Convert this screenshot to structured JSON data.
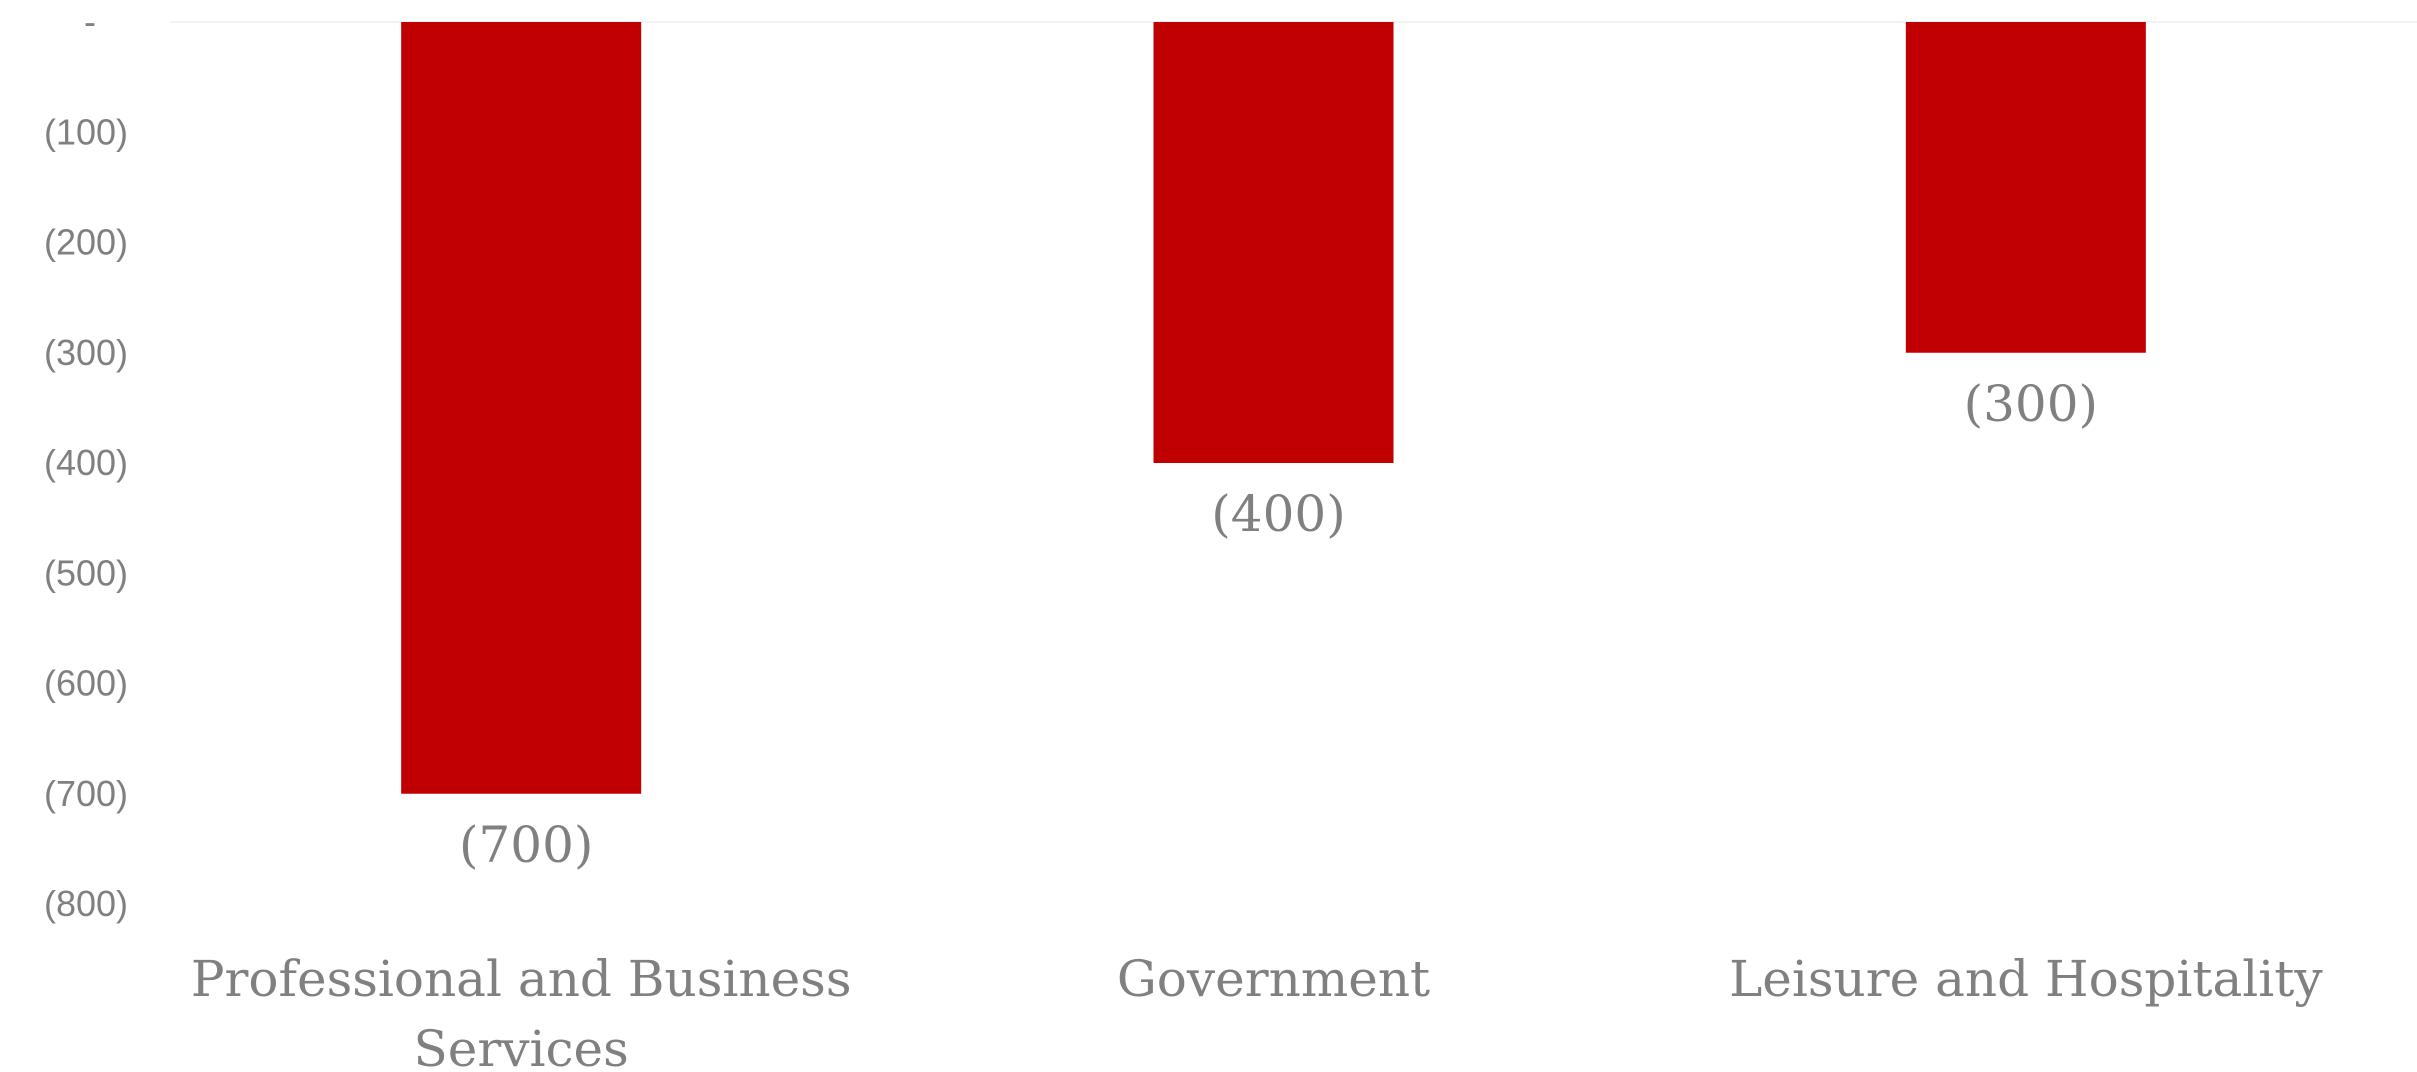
{
  "chart_data": {
    "type": "bar",
    "categories": [
      "Professional and Business Services",
      "Government",
      "Leisure and Hospitality"
    ],
    "category_lines": [
      [
        "Professional and Business",
        "Services"
      ],
      [
        "Government"
      ],
      [
        "Leisure and Hospitality"
      ]
    ],
    "values": [
      -700,
      -400,
      -300
    ],
    "data_labels": [
      "(700)",
      "(400)",
      "(300)"
    ],
    "yticks": [
      0,
      -100,
      -200,
      -300,
      -400,
      -500,
      -600,
      -700,
      -800
    ],
    "ytick_labels": [
      "-",
      "(100)",
      "(200)",
      "(300)",
      "(400)",
      "(500)",
      "(600)",
      "(700)",
      "(800)"
    ],
    "ylim": [
      -800,
      0
    ],
    "bar_color": "#C00000",
    "text_color": "#808080",
    "grid": false
  }
}
